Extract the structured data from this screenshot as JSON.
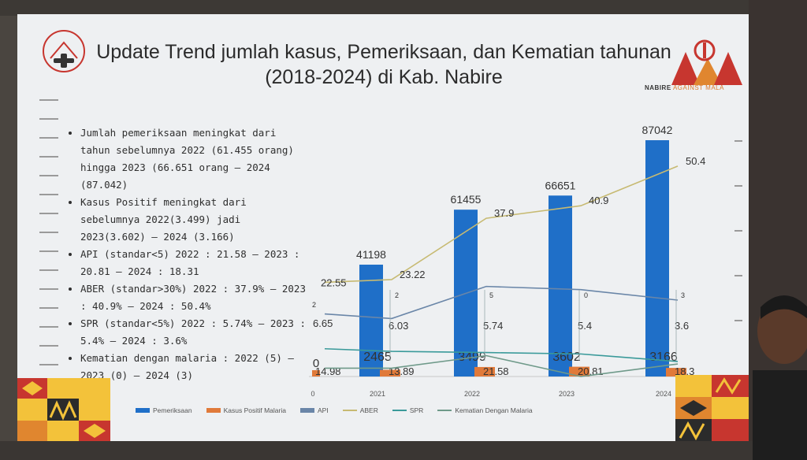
{
  "slide": {
    "title_line1": "Update Trend jumlah kasus, Pemeriksaan, dan Kematian tahunan",
    "title_line2": "(2018-2024) di Kab. Nabire",
    "logo_text_bold": "NABIRE",
    "logo_text_orange": "AGAINST MALA"
  },
  "bullets": [
    "Jumlah pemeriksaan meningkat dari tahun sebelumnya 2022 (61.455 orang) hingga 2023 (66.651 orang – 2024 (87.042)",
    "Kasus Positif meningkat dari sebelumnya 2022(3.499) jadi 2023(3.602) – 2024 (3.166)",
    "API (standar<5) 2022 : 21.58 – 2023 : 20.81 – 2024 : 18.31",
    "ABER (standar>30%) 2022 : 37.9% – 2023 : 40.9% – 2024 : 50.4%",
    "SPR (standar<5%) 2022 : 5.74% – 2023 : 5.4% – 2024 : 3.6%",
    "Kematian dengan malaria : 2022 (5) – 2023 (0) – 2024 (3)"
  ],
  "colors": {
    "pemeriksaan": "#1f6fc8",
    "kasus": "#e07a3a",
    "api": "#6a86a8",
    "aber": "#c7ba72",
    "spr": "#3a9a9a",
    "kematian": "#6f9a8a"
  },
  "chart_data": {
    "type": "bar",
    "categories": [
      "2021",
      "2022",
      "2023",
      "2024"
    ],
    "series": [
      {
        "name": "Pemeriksaan",
        "kind": "bar",
        "values": [
          41198,
          61455,
          66651,
          87042
        ],
        "labels": [
          "41198",
          "61455",
          "66651",
          "87042"
        ]
      },
      {
        "name": "Kasus Positif Malaria",
        "kind": "bar",
        "values": [
          2465,
          3499,
          3602,
          3166
        ],
        "labels": [
          "2465",
          "3499",
          "3602",
          "3166"
        ]
      },
      {
        "name": "API",
        "kind": "line",
        "values": [
          13.89,
          21.58,
          20.81,
          18.3
        ],
        "labels": [
          "13.89",
          "21.58",
          "20.81",
          "18.3"
        ]
      },
      {
        "name": "ABER",
        "kind": "line",
        "values": [
          23.22,
          37.9,
          40.9,
          50.4
        ],
        "labels": [
          "23.22",
          "37.9",
          "40.9",
          "50.4"
        ]
      },
      {
        "name": "SPR",
        "kind": "line",
        "values": [
          6.03,
          5.74,
          5.4,
          3.6
        ],
        "labels": [
          "6.03",
          "5.74",
          "5.4",
          "3.6"
        ]
      },
      {
        "name": "Kematian Dengan Malaria",
        "kind": "line",
        "values": [
          2,
          5,
          0,
          3
        ],
        "labels": [
          "2",
          "5",
          "0",
          "3"
        ]
      }
    ],
    "prior_year_labels": {
      "aber": "22.55",
      "spr": "6.65",
      "api": "14.98",
      "kematian": "2",
      "kasus": "0"
    },
    "prior_tick": "0",
    "legend": [
      "Pemeriksaan",
      "Kasus Positif Malaria",
      "API",
      "ABER",
      "SPR",
      "Kematian Dengan Malaria"
    ],
    "legend_position": "bottom"
  }
}
